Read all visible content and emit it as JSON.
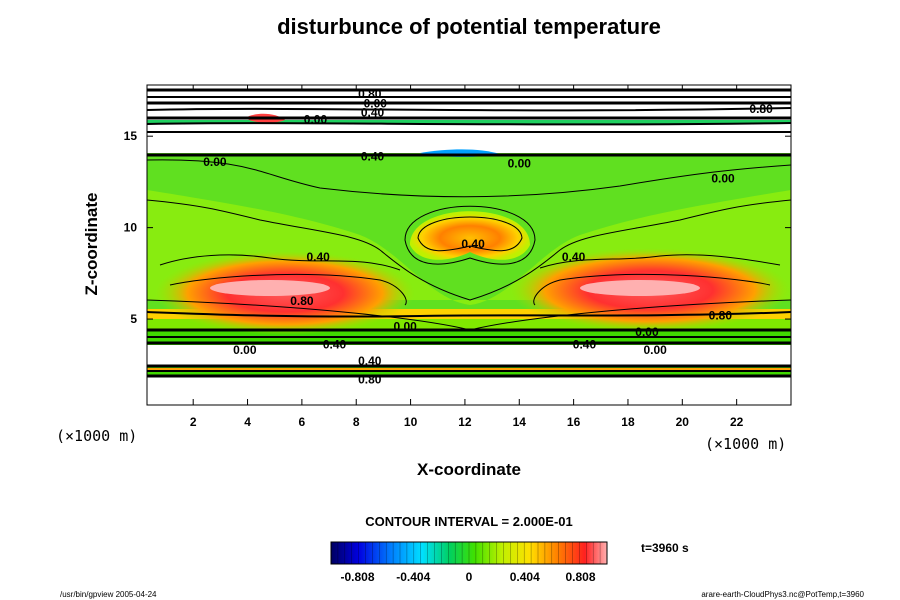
{
  "chart_data": {
    "type": "heatmap",
    "title": "disturbunce of potential temperature",
    "xlabel": "X-coordinate",
    "ylabel": "Z-coordinate",
    "x_unit": "(×1000 m)",
    "xlim": [
      0.3,
      24.0
    ],
    "ylim": [
      0.3,
      17.8
    ],
    "x_ticks": [
      2,
      4,
      6,
      8,
      10,
      12,
      14,
      16,
      18,
      20,
      22
    ],
    "y_ticks": [
      5,
      10,
      15
    ],
    "contour_interval": "CONTOUR INTERVAL = 2.000E-01",
    "time": "t=3960 s",
    "colorbar": {
      "range": [
        -1.0,
        1.0
      ],
      "tick_values": [
        -0.808,
        -0.404,
        0,
        0.404,
        0.808
      ],
      "tick_labels": [
        "-0.808",
        "-0.404",
        "0",
        "0.404",
        "0.808"
      ]
    },
    "contour_labels": [
      {
        "x": 8.5,
        "z": 17.3,
        "text": "0.80"
      },
      {
        "x": 8.7,
        "z": 16.8,
        "text": "0.00"
      },
      {
        "x": 8.6,
        "z": 16.3,
        "text": "0.40"
      },
      {
        "x": 6.5,
        "z": 15.9,
        "text": "0.00"
      },
      {
        "x": 22.9,
        "z": 16.5,
        "text": "0.80"
      },
      {
        "x": 2.8,
        "z": 13.6,
        "text": "0.00"
      },
      {
        "x": 8.6,
        "z": 13.9,
        "text": "0.40"
      },
      {
        "x": 14.0,
        "z": 13.5,
        "text": "0.00"
      },
      {
        "x": 21.5,
        "z": 12.7,
        "text": "0.00"
      },
      {
        "x": 12.3,
        "z": 9.1,
        "text": "0.40"
      },
      {
        "x": 6.6,
        "z": 8.4,
        "text": "0.40"
      },
      {
        "x": 16.0,
        "z": 8.4,
        "text": "0.40"
      },
      {
        "x": 6.0,
        "z": 6.0,
        "text": "0.80"
      },
      {
        "x": 21.4,
        "z": 5.2,
        "text": "0.80"
      },
      {
        "x": 9.8,
        "z": 4.6,
        "text": "0.00"
      },
      {
        "x": 7.2,
        "z": 3.6,
        "text": "0.40"
      },
      {
        "x": 3.9,
        "z": 3.3,
        "text": "0.00"
      },
      {
        "x": 8.5,
        "z": 2.7,
        "text": "0.40"
      },
      {
        "x": 16.4,
        "z": 3.6,
        "text": "0.40"
      },
      {
        "x": 18.7,
        "z": 4.3,
        "text": "0.00"
      },
      {
        "x": 19.0,
        "z": 3.3,
        "text": "0.00"
      },
      {
        "x": 8.5,
        "z": 1.7,
        "text": "0.80"
      }
    ]
  },
  "footer": {
    "left": "/usr/bin/gpview 2005-04-24",
    "right": "arare-earth-CloudPhys3.nc@PotTemp,t=3960"
  }
}
